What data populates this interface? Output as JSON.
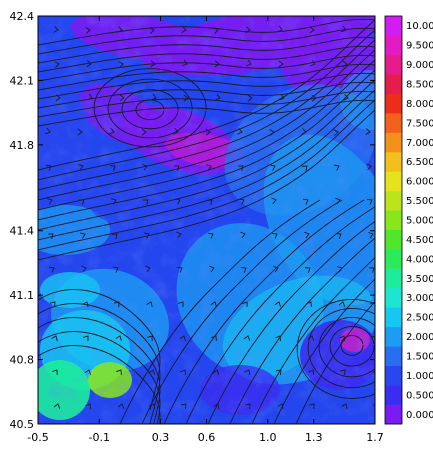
{
  "chart_data": {
    "type": "heatmap",
    "title": "",
    "xlabel": "",
    "ylabel": "",
    "x_ticks": [
      "-0.5",
      "-0.1",
      "0.3",
      "0.6",
      "1.0",
      "1.3",
      "1.7"
    ],
    "x_tick_values": [
      -0.5,
      -0.1,
      0.3,
      0.6,
      1.0,
      1.3,
      1.7
    ],
    "y_ticks": [
      "42.4",
      "42.1",
      "41.8",
      "41.4",
      "41.1",
      "40.8",
      "40.5"
    ],
    "y_tick_values": [
      42.4,
      42.1,
      41.8,
      41.4,
      41.1,
      40.8,
      40.5
    ],
    "xlim": [
      -0.5,
      1.7
    ],
    "ylim": [
      40.5,
      42.4
    ],
    "overlay": "streamlines with arrowheads",
    "colorbar": {
      "labels": [
        "0.000",
        "0.500",
        "1.000",
        "1.500",
        "2.000",
        "2.500",
        "3.000",
        "3.500",
        "4.000",
        "4.500",
        "5.000",
        "5.500",
        "6.000",
        "6.500",
        "7.000",
        "7.500",
        "8.000",
        "8.500",
        "9.000",
        "9.500",
        "10.00"
      ],
      "values": [
        0,
        0.5,
        1,
        1.5,
        2,
        2.5,
        3,
        3.5,
        4,
        4.5,
        5,
        5.5,
        6,
        6.5,
        7,
        7.5,
        8,
        8.5,
        9,
        9.5,
        10
      ],
      "colors": [
        "#7a1cf0",
        "#3c2cf0",
        "#2a46ee",
        "#2a6ef0",
        "#1c9cf2",
        "#18c6f2",
        "#1ce6d2",
        "#1cec9c",
        "#2cea5c",
        "#50e62c",
        "#8ae61c",
        "#bce41c",
        "#e6e21c",
        "#f2c01c",
        "#f2921c",
        "#f2621c",
        "#ee2c1c",
        "#e61c4c",
        "#e61c8c",
        "#e21cc2",
        "#d21cf2"
      ]
    },
    "grid": false,
    "legend": "colorbar-right"
  }
}
